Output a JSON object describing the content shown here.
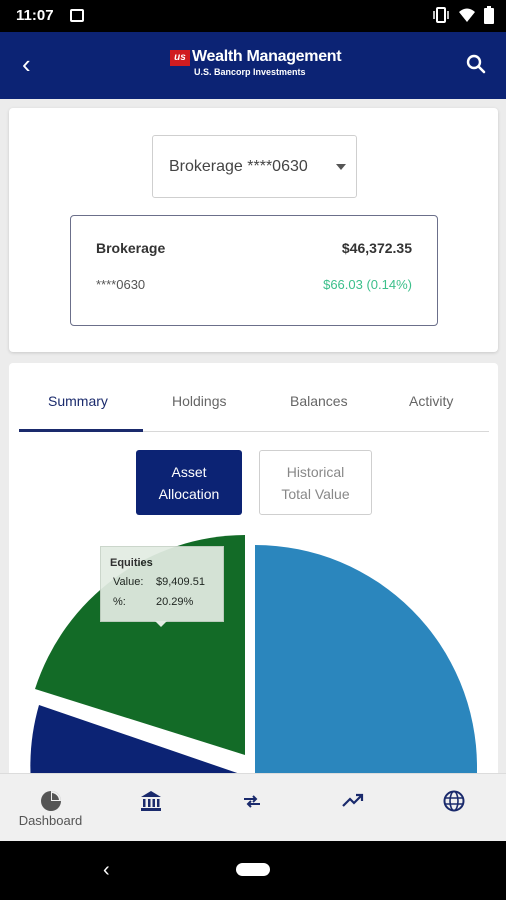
{
  "status_bar": {
    "time": "11:07"
  },
  "app_bar": {
    "logo_badge": "us",
    "logo_title": "Wealth Management",
    "logo_subtitle": "U.S. Bancorp Investments"
  },
  "account_select": {
    "selected_value": "Brokerage ****0630"
  },
  "account_summary": {
    "name": "Brokerage",
    "total_value": "$46,372.35",
    "account_number": "****0630",
    "change": "$66.03 (0.14%)",
    "change_color": "#3cbf8b"
  },
  "tabs": [
    {
      "label": "Summary",
      "active": true
    },
    {
      "label": "Holdings",
      "active": false
    },
    {
      "label": "Balances",
      "active": false
    },
    {
      "label": "Activity",
      "active": false
    }
  ],
  "view_toggle": {
    "primary_label_line1": "Asset",
    "primary_label_line2": "Allocation",
    "secondary_label_line1": "Historical",
    "secondary_label_line2": "Total Value"
  },
  "tooltip": {
    "title": "Equities",
    "value_label": "Value:",
    "value": "$9,409.51",
    "pct_label": "%:",
    "pct": "20.29%"
  },
  "chart_data": {
    "type": "pie",
    "series": [
      {
        "name": "Equities",
        "percent": 20.29,
        "color": "#136b27"
      }
    ],
    "visible_colors": [
      "#2b86bd",
      "#136b27",
      "#0c2374"
    ]
  },
  "bottom_nav": [
    {
      "icon": "pie-chart-icon",
      "label": "Dashboard"
    },
    {
      "icon": "bank-icon",
      "label": ""
    },
    {
      "icon": "transfer-icon",
      "label": ""
    },
    {
      "icon": "trending-up-icon",
      "label": ""
    },
    {
      "icon": "globe-icon",
      "label": ""
    }
  ],
  "colors": {
    "brand_navy": "#0c2374",
    "brand_red": "#d01c1f",
    "positive_green": "#3cbf8b"
  }
}
